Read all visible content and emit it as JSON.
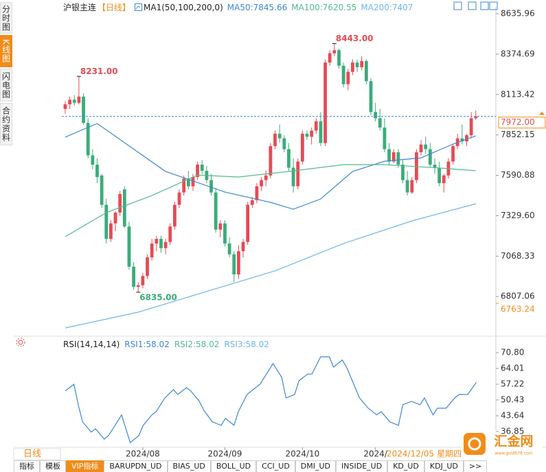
{
  "sidebar": {
    "tabs": [
      "分时图",
      "K线图",
      "闪电图",
      "合约资料"
    ],
    "active": 1
  },
  "header": {
    "symbol": "沪银主连",
    "period": "【日线】",
    "indicator": "MA1(50,100,200,0)"
  },
  "chart_data": [
    {
      "type": "candlestick",
      "up_color": "#e64b55",
      "down_color": "#3bac7a",
      "xlim": [
        -0.75,
        94.4
      ],
      "ylim": [
        6550.8,
        8680.3
      ],
      "yticks": [
        8635.96,
        8374.69,
        8113.42,
        7852.15,
        7590.88,
        {
          "value": 7329.6,
          "label": "7329.60"
        },
        7068.33,
        6807.06
      ],
      "xticks": [
        {
          "value": 17,
          "label": "2024/08"
        },
        {
          "value": 35,
          "label": "2024/09"
        },
        {
          "value": 52,
          "label": "2024/10"
        },
        {
          "value": 68,
          "label": "2024/"
        }
      ],
      "ohlc": [
        [
          8020,
          8070,
          7990,
          8050
        ],
        [
          8050,
          8100,
          8020,
          8080
        ],
        [
          8080,
          8110,
          8040,
          8060
        ],
        [
          8060,
          8231,
          8050,
          8100
        ],
        [
          8100,
          8120,
          7920,
          7930
        ],
        [
          7930,
          7960,
          7700,
          7720
        ],
        [
          7720,
          7760,
          7630,
          7660
        ],
        [
          7660,
          7700,
          7540,
          7580
        ],
        [
          7590,
          7600,
          7380,
          7400
        ],
        [
          7400,
          7440,
          7150,
          7180
        ],
        [
          7180,
          7300,
          7160,
          7280
        ],
        [
          7280,
          7360,
          7230,
          7350
        ],
        [
          7350,
          7490,
          7330,
          7470
        ],
        [
          7500,
          7520,
          7250,
          7260
        ],
        [
          7260,
          7290,
          6980,
          7000
        ],
        [
          7000,
          7030,
          6850,
          6870
        ],
        [
          6870,
          6900,
          6835,
          6880
        ],
        [
          6880,
          6960,
          6860,
          6940
        ],
        [
          6940,
          7080,
          6920,
          7060
        ],
        [
          7060,
          7180,
          7040,
          7150
        ],
        [
          7150,
          7200,
          7100,
          7180
        ],
        [
          7180,
          7200,
          7090,
          7120
        ],
        [
          7120,
          7180,
          7080,
          7160
        ],
        [
          7160,
          7280,
          7140,
          7260
        ],
        [
          7260,
          7420,
          7240,
          7400
        ],
        [
          7400,
          7500,
          7380,
          7480
        ],
        [
          7480,
          7590,
          7460,
          7570
        ],
        [
          7570,
          7620,
          7500,
          7520
        ],
        [
          7520,
          7600,
          7490,
          7580
        ],
        [
          7580,
          7680,
          7560,
          7660
        ],
        [
          7660,
          7690,
          7600,
          7620
        ],
        [
          7620,
          7650,
          7540,
          7560
        ],
        [
          7560,
          7600,
          7460,
          7480
        ],
        [
          7480,
          7510,
          7220,
          7240
        ],
        [
          7240,
          7300,
          7190,
          7280
        ],
        [
          7280,
          7300,
          7130,
          7150
        ],
        [
          7150,
          7190,
          7060,
          7080
        ],
        [
          7080,
          7100,
          6900,
          6950
        ],
        [
          6950,
          7140,
          6920,
          7100
        ],
        [
          7100,
          7180,
          7060,
          7160
        ],
        [
          7160,
          7420,
          7140,
          7400
        ],
        [
          7400,
          7450,
          7380,
          7430
        ],
        [
          7430,
          7540,
          7410,
          7520
        ],
        [
          7520,
          7580,
          7490,
          7560
        ],
        [
          7560,
          7620,
          7520,
          7590
        ],
        [
          7590,
          7800,
          7570,
          7780
        ],
        [
          7780,
          7880,
          7760,
          7860
        ],
        [
          7860,
          7920,
          7800,
          7830
        ],
        [
          7830,
          7850,
          7740,
          7760
        ],
        [
          7760,
          7800,
          7620,
          7640
        ],
        [
          7640,
          7700,
          7480,
          7520
        ],
        [
          7520,
          7700,
          7500,
          7680
        ],
        [
          7680,
          7880,
          7660,
          7860
        ],
        [
          7860,
          7880,
          7820,
          7840
        ],
        [
          7840,
          7900,
          7790,
          7880
        ],
        [
          7880,
          7960,
          7860,
          7940
        ],
        [
          7940,
          8000,
          7780,
          7800
        ],
        [
          7800,
          8340,
          7780,
          8320
        ],
        [
          8320,
          8400,
          8300,
          8380
        ],
        [
          8380,
          8443,
          8360,
          8400
        ],
        [
          8400,
          8410,
          8280,
          8300
        ],
        [
          8300,
          8320,
          8160,
          8180
        ],
        [
          8180,
          8280,
          8140,
          8260
        ],
        [
          8260,
          8340,
          8240,
          8320
        ],
        [
          8320,
          8340,
          8260,
          8290
        ],
        [
          8290,
          8360,
          8270,
          8330
        ],
        [
          8330,
          8340,
          8180,
          8200
        ],
        [
          8200,
          8220,
          7980,
          8000
        ],
        [
          8000,
          8060,
          7940,
          7960
        ],
        [
          7960,
          8020,
          7880,
          7900
        ],
        [
          7900,
          7960,
          7740,
          7760
        ],
        [
          7760,
          7800,
          7660,
          7680
        ],
        [
          7680,
          7760,
          7670,
          7740
        ],
        [
          7740,
          7760,
          7640,
          7660
        ],
        [
          7660,
          7690,
          7540,
          7560
        ],
        [
          7560,
          7620,
          7460,
          7480
        ],
        [
          7480,
          7580,
          7470,
          7560
        ],
        [
          7560,
          7760,
          7540,
          7740
        ],
        [
          7740,
          7820,
          7720,
          7790
        ],
        [
          7790,
          7840,
          7730,
          7760
        ],
        [
          7760,
          7800,
          7640,
          7660
        ],
        [
          7660,
          7700,
          7600,
          7640
        ],
        [
          7640,
          7680,
          7520,
          7540
        ],
        [
          7540,
          7600,
          7480,
          7590
        ],
        [
          7590,
          7700,
          7570,
          7680
        ],
        [
          7680,
          7790,
          7660,
          7780
        ],
        [
          7780,
          7860,
          7760,
          7830
        ],
        [
          7830,
          7920,
          7790,
          7810
        ],
        [
          7810,
          7860,
          7780,
          7850
        ],
        [
          7850,
          8000,
          7830,
          7960
        ],
        [
          7960,
          8010,
          7950,
          7972
        ]
      ],
      "series": [
        {
          "name": "MA50:7845.66",
          "color": "#3f86d3",
          "x": [
            0,
            7,
            22,
            35,
            45,
            50,
            56,
            63,
            70,
            78,
            85,
            90
          ],
          "values": [
            7838,
            7926,
            7616,
            7483,
            7416,
            7372,
            7438,
            7616,
            7682,
            7704,
            7793,
            7845.66
          ]
        },
        {
          "name": "MA100:7620.55",
          "color": "#55b890",
          "x": [
            0,
            9,
            19,
            29,
            38,
            49,
            61,
            70,
            82,
            90
          ],
          "values": [
            7194,
            7350,
            7460,
            7593,
            7580,
            7616,
            7660,
            7660,
            7638,
            7620.55
          ]
        },
        {
          "name": "MA200:7407",
          "color": "#6fb5ea",
          "x": [
            0,
            16,
            31,
            46,
            61,
            76,
            90
          ],
          "values": [
            6604,
            6706,
            6840,
            6973,
            7150,
            7296,
            7407
          ]
        }
      ],
      "annotations": [
        {
          "x": 3,
          "value": 8231,
          "label": "8231.00",
          "color": "#e64b55"
        },
        {
          "x": 59,
          "value": 8443,
          "label": "8443.00",
          "color": "#e64b55"
        },
        {
          "x": 16,
          "value": 6835,
          "label": "6835.00",
          "color": "#3bac7a"
        }
      ],
      "price_lines": [
        {
          "value": 7972,
          "label": "7972.00",
          "color": "#e64b55",
          "dashed": true
        },
        {
          "value": 6763.24,
          "label": "6763.24",
          "color": "#f08c1a",
          "dashed": false
        }
      ]
    },
    {
      "type": "line",
      "title": "RSI(14,14,14)",
      "xlim": [
        -0.8,
        99.5
      ],
      "ylim": [
        30.65,
        76.41
      ],
      "yticks": [
        {
          "value": 70.8,
          "label": "70.80"
        },
        64.01,
        57.22,
        50.43,
        43.64,
        36.85
      ],
      "series": [
        {
          "name": "RSI1:58.02",
          "color": "#3f86d3",
          "x": [
            0,
            2,
            3,
            4,
            6,
            7,
            9,
            10,
            12,
            13,
            15,
            17,
            18,
            20,
            21,
            23,
            25,
            26,
            28,
            29,
            31,
            32,
            34,
            36,
            37,
            39,
            40,
            42,
            43,
            45,
            47,
            48,
            50,
            51,
            53,
            54,
            56,
            57,
            59,
            61,
            62,
            64,
            65,
            67,
            68,
            70,
            72,
            73,
            75,
            77,
            78,
            80,
            82,
            83,
            85,
            86,
            88,
            90,
            91,
            93,
            95
          ],
          "values": [
            54.3,
            57.2,
            48.4,
            41.0,
            36.6,
            38.0,
            33.6,
            35.1,
            41.0,
            44.0,
            32.1,
            35.1,
            39.5,
            44.0,
            45.4,
            51.3,
            54.9,
            52.8,
            55.7,
            54.3,
            49.8,
            46.0,
            41.0,
            39.5,
            42.5,
            39.5,
            45.4,
            52.8,
            54.3,
            57.2,
            63.1,
            66.1,
            60.2,
            51.3,
            52.8,
            58.7,
            61.6,
            61.6,
            69.0,
            69.0,
            64.6,
            67.6,
            64.6,
            55.7,
            51.3,
            46.9,
            44.0,
            45.4,
            41.0,
            39.5,
            48.4,
            49.8,
            48.4,
            51.3,
            44.0,
            46.9,
            46.9,
            51.3,
            52.8,
            52.8,
            58.02
          ]
        },
        {
          "name": "RSI2:58.02",
          "color": "#55b890"
        },
        {
          "name": "RSI3:58.02",
          "color": "#6fb5ea"
        }
      ]
    }
  ],
  "footer": {
    "period": "日线",
    "cursor_date": "2024/12/05 星期四 2",
    "tabs": [
      "指标",
      "模板",
      "VIP指标",
      "BARUPDN_UD",
      "BIAS_UD",
      "BOLL_UD",
      "CCI_UD",
      "DMI_UD",
      "INSIDE_UD",
      "KD_UD",
      "KDJ_UD",
      ">>"
    ],
    "active": 2
  },
  "logo": {
    "name": "汇金网",
    "url": "www.gold678.com"
  }
}
